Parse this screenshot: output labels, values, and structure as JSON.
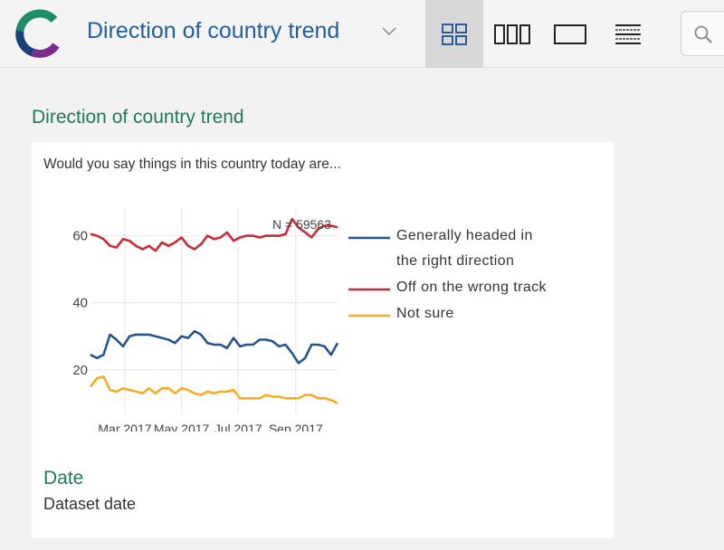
{
  "header": {
    "app_title": "Direction of country trend",
    "logo_icon": "c-logo-icon",
    "view_buttons": [
      {
        "icon": "grid-2x2-icon",
        "active": true
      },
      {
        "icon": "columns-3-icon",
        "active": false
      },
      {
        "icon": "single-panel-icon",
        "active": false
      },
      {
        "icon": "rows-list-icon",
        "active": false
      }
    ],
    "search_icon": "search-icon"
  },
  "main": {
    "section_title": "Direction of country trend",
    "question": "Would you say things in this country today are...",
    "date_heading": "Date",
    "date_value": "Dataset date"
  },
  "chart_data": {
    "type": "line",
    "annotation": "N = 59563",
    "ylim": [
      7,
      68
    ],
    "yticks": [
      20,
      40,
      60
    ],
    "x_range": [
      "2017-01-23",
      "2017-10-16"
    ],
    "xticks": [
      {
        "date": "2017-03-01",
        "label": "Mar 2017"
      },
      {
        "date": "2017-05-01",
        "label": "May 2017"
      },
      {
        "date": "2017-07-01",
        "label": "Jul 2017"
      },
      {
        "date": "2017-09-01",
        "label": "Sep 2017"
      }
    ],
    "x": [
      "2017-01-23",
      "2017-01-30",
      "2017-02-06",
      "2017-02-13",
      "2017-02-20",
      "2017-02-27",
      "2017-03-06",
      "2017-03-13",
      "2017-03-20",
      "2017-03-27",
      "2017-04-03",
      "2017-04-10",
      "2017-04-17",
      "2017-04-24",
      "2017-05-01",
      "2017-05-08",
      "2017-05-15",
      "2017-05-22",
      "2017-05-29",
      "2017-06-05",
      "2017-06-12",
      "2017-06-19",
      "2017-06-26",
      "2017-07-03",
      "2017-07-10",
      "2017-07-17",
      "2017-07-24",
      "2017-07-31",
      "2017-08-07",
      "2017-08-14",
      "2017-08-21",
      "2017-08-28",
      "2017-09-04",
      "2017-09-11",
      "2017-09-18",
      "2017-09-25",
      "2017-10-02",
      "2017-10-09",
      "2017-10-16"
    ],
    "series": [
      {
        "name": "Generally headed in the right direction",
        "legend_lines": [
          "Generally headed in",
          "the right direction"
        ],
        "color": "#24568c",
        "values": [
          24.5,
          23.5,
          24.5,
          30.5,
          29,
          27,
          30,
          30.5,
          30.5,
          30.5,
          30,
          29.5,
          29,
          28,
          30,
          29.5,
          31.5,
          30.5,
          28,
          27.5,
          27.5,
          26.5,
          29.5,
          27,
          27.5,
          27.5,
          29,
          29,
          28.5,
          27,
          27.5,
          25,
          22,
          23.5,
          27.5,
          27.5,
          27,
          24.5,
          28
        ]
      },
      {
        "name": "Off on the wrong track",
        "legend_lines": [
          "Off on the wrong track"
        ],
        "color": "#cc2936",
        "values": [
          60.5,
          60,
          59,
          57,
          56.5,
          59,
          58.5,
          57,
          56,
          57,
          55.5,
          58,
          57,
          58,
          59.5,
          57,
          56,
          57.5,
          60,
          59,
          59.5,
          61,
          58.5,
          59.5,
          60,
          60,
          59.5,
          60,
          60,
          60,
          60.5,
          65,
          62.5,
          61,
          59.5,
          62,
          63,
          63,
          62.5
        ]
      },
      {
        "name": "Not sure",
        "legend_lines": [
          "Not sure"
        ],
        "color": "#f5ad25",
        "values": [
          15,
          17.5,
          18,
          14,
          13.5,
          14.5,
          14,
          13.5,
          13,
          14.5,
          13,
          14.5,
          14.5,
          13,
          14.5,
          14,
          13,
          12.5,
          13.5,
          13,
          13.5,
          13.5,
          14,
          11.5,
          11.5,
          11.5,
          11.5,
          12.5,
          12,
          12,
          11.5,
          11.5,
          11.5,
          12.5,
          12.5,
          11.5,
          11.5,
          11,
          10
        ]
      }
    ],
    "grid": true,
    "legend_position": "right"
  }
}
